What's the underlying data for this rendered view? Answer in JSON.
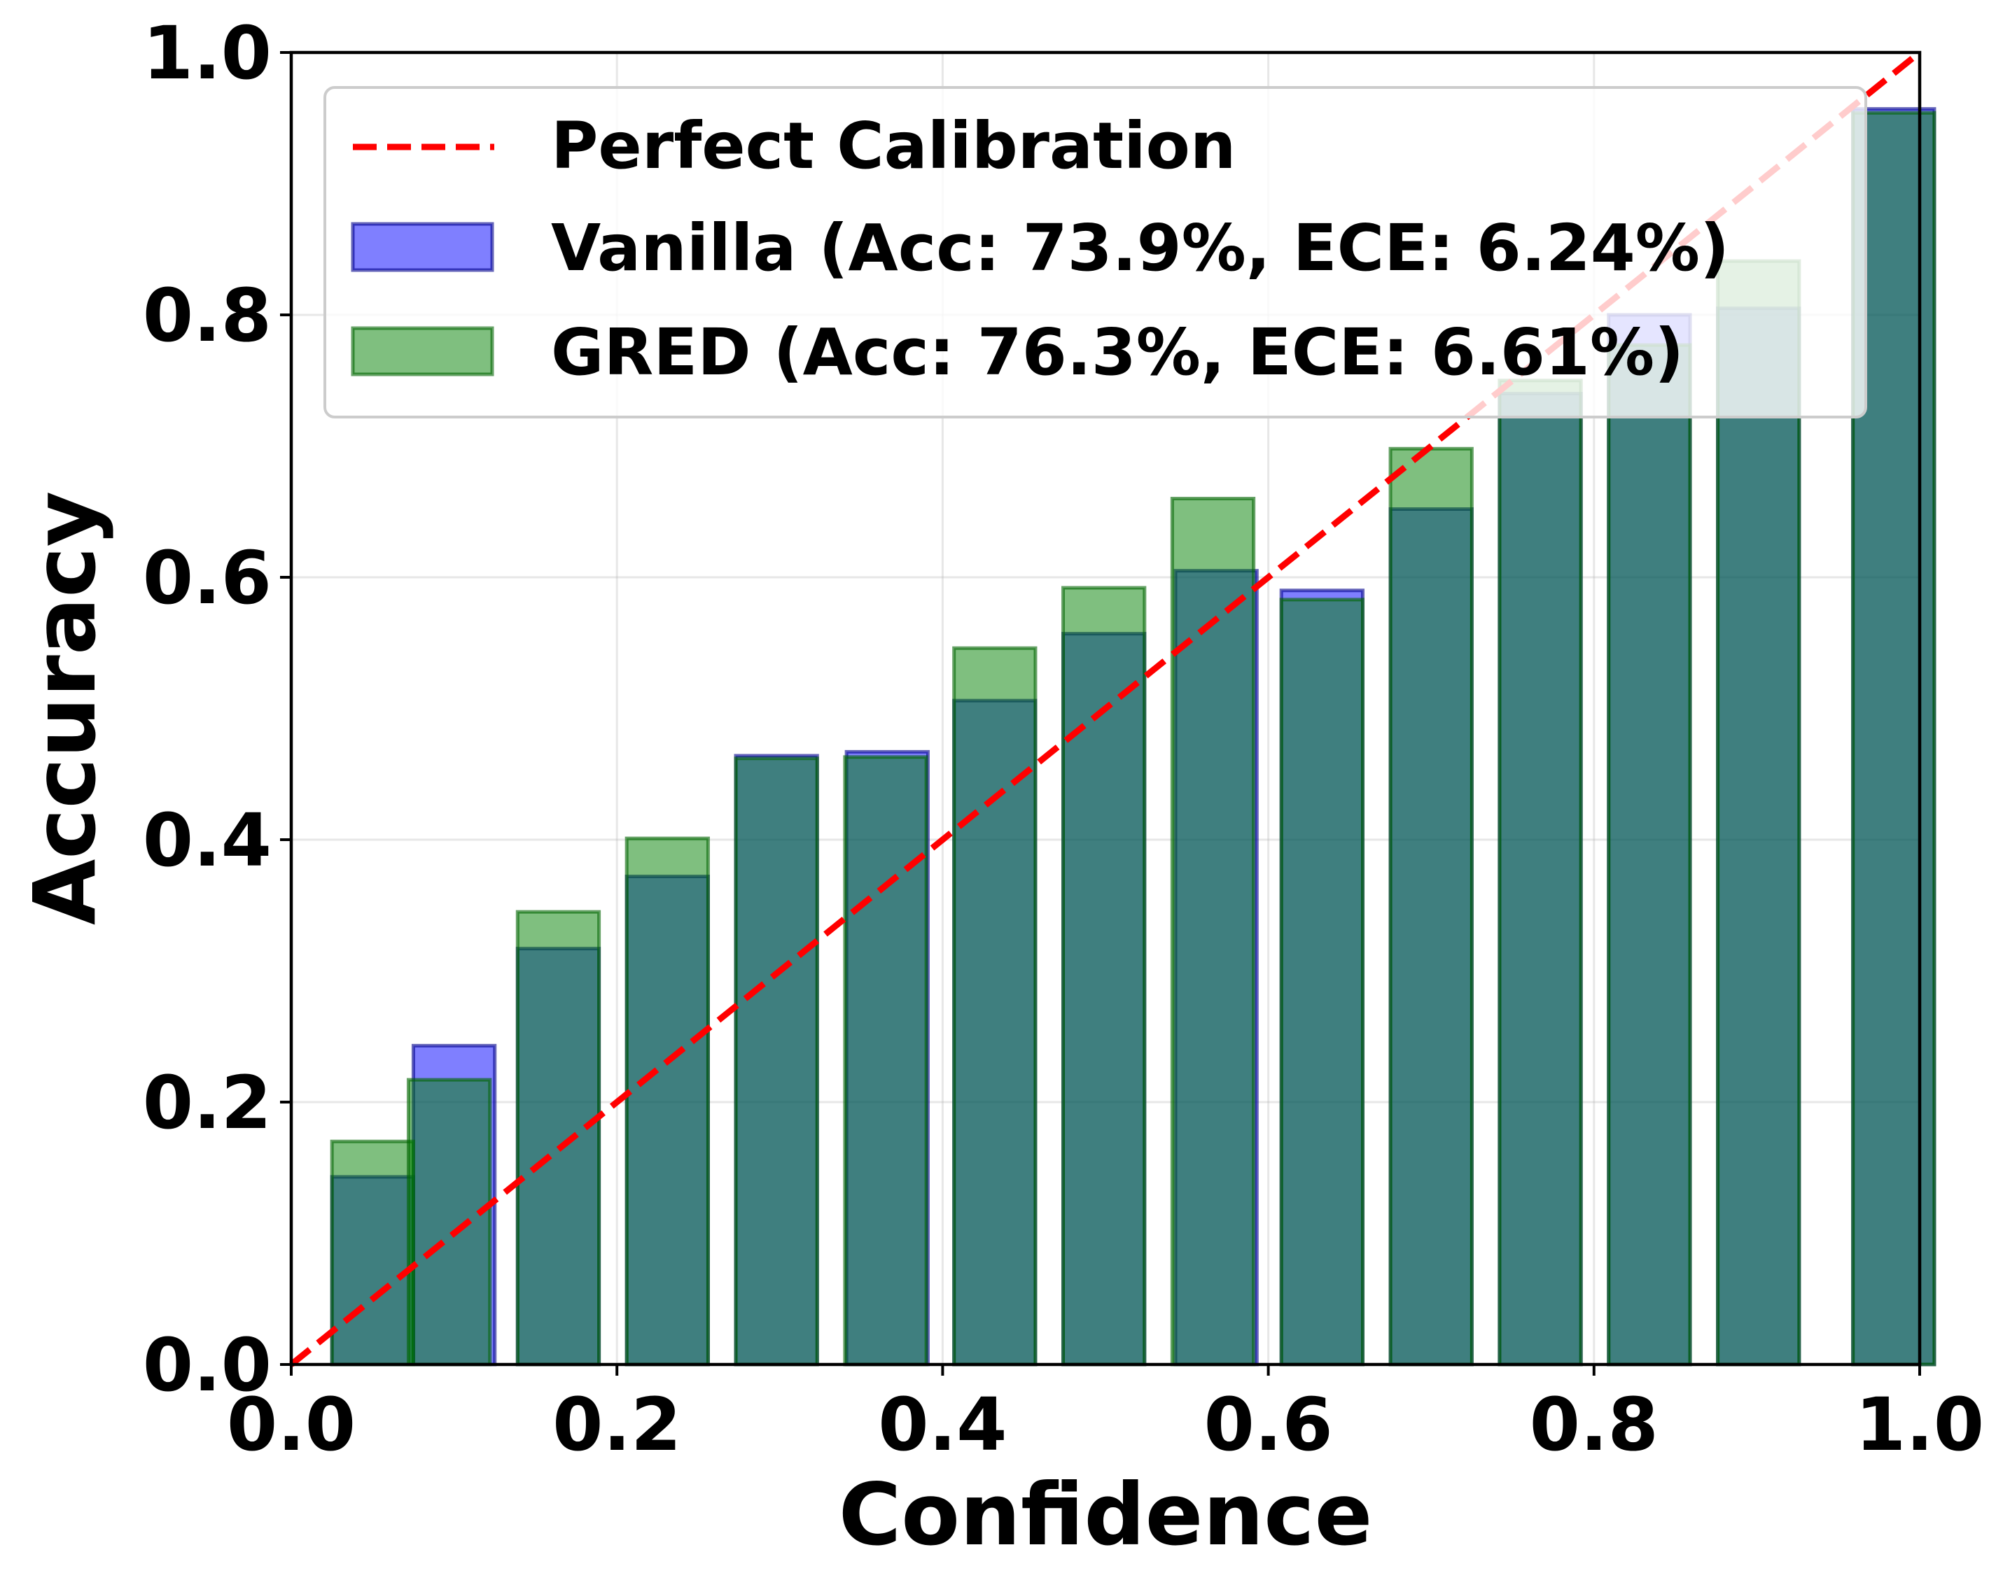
{
  "chart_data": {
    "type": "bar",
    "title": "",
    "xlabel": "Confidence",
    "ylabel": "Accuracy",
    "xlim": [
      0.0,
      1.0
    ],
    "ylim": [
      0.0,
      1.0
    ],
    "xticks": [
      "0.0",
      "0.2",
      "0.4",
      "0.6",
      "0.8",
      "1.0"
    ],
    "yticks": [
      "0.0",
      "0.2",
      "0.4",
      "0.6",
      "0.8",
      "1.0"
    ],
    "grid": true,
    "legend_position": "top",
    "bar_width": 0.05,
    "reference_line": {
      "name": "Perfect Calibration",
      "x": [
        0,
        1
      ],
      "y": [
        0,
        1
      ],
      "color": "#ff0000",
      "style": "dashed"
    },
    "series": [
      {
        "name": "Vanilla (Acc: 73.9%, ECE: 6.24%)",
        "color": "#0000ff",
        "x": [
          0.05,
          0.1,
          0.164,
          0.231,
          0.298,
          0.366,
          0.432,
          0.499,
          0.568,
          0.633,
          0.7,
          0.767,
          0.834,
          0.901,
          0.984
        ],
        "values": [
          0.143,
          0.243,
          0.317,
          0.372,
          0.464,
          0.467,
          0.506,
          0.557,
          0.605,
          0.59,
          0.652,
          0.74,
          0.8,
          0.805,
          0.957
        ]
      },
      {
        "name": "GRED (Acc: 76.3%, ECE: 6.61%)",
        "color": "#008000",
        "x": [
          0.05,
          0.097,
          0.164,
          0.231,
          0.298,
          0.365,
          0.432,
          0.499,
          0.566,
          0.633,
          0.7,
          0.767,
          0.834,
          0.901,
          0.984
        ],
        "values": [
          0.17,
          0.217,
          0.345,
          0.401,
          0.462,
          0.463,
          0.546,
          0.592,
          0.66,
          0.583,
          0.698,
          0.75,
          0.777,
          0.841,
          0.954
        ]
      }
    ]
  }
}
